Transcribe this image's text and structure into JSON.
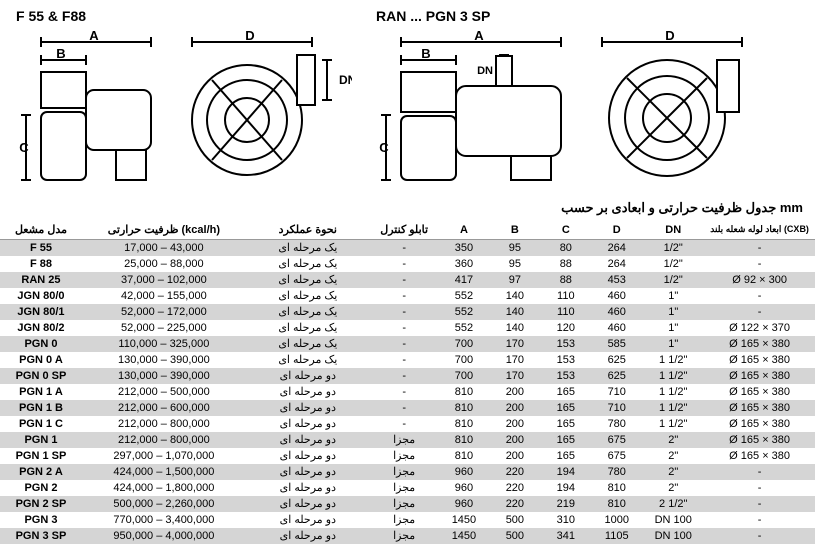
{
  "titles": {
    "left": "F 55 & F88",
    "right": "RAN ... PGN 3 SP",
    "table_caption": "جدول ظرفیت حرارتی و ابعادی بر حسب mm"
  },
  "headers": {
    "model": "مدل مشعل",
    "capacity": "ظرفیت حرارتی (kcal/h)",
    "operation": "نحوة عملكرد",
    "panel": "تابلو کنترل",
    "A": "A",
    "B": "B",
    "C": "C",
    "D": "D",
    "DN": "DN",
    "tube": "ابعاد لوله شعله بلند (CXB)"
  },
  "rows": [
    {
      "model": "F 55",
      "capacity": "17,000 – 43,000",
      "operation": "یک مرحله ای",
      "panel": "-",
      "A": "350",
      "B": "95",
      "C": "80",
      "D": "264",
      "DN": "1/2\"",
      "tube": "-"
    },
    {
      "model": "F 88",
      "capacity": "25,000 – 88,000",
      "operation": "یک مرحله ای",
      "panel": "-",
      "A": "360",
      "B": "95",
      "C": "88",
      "D": "264",
      "DN": "1/2\"",
      "tube": "-"
    },
    {
      "model": "RAN 25",
      "capacity": "37,000 – 102,000",
      "operation": "یک مرحله ای",
      "panel": "-",
      "A": "417",
      "B": "97",
      "C": "88",
      "D": "453",
      "DN": "1/2\"",
      "tube": "Ø 92 × 300"
    },
    {
      "model": "JGN 80/0",
      "capacity": "42,000 – 155,000",
      "operation": "یک مرحله ای",
      "panel": "-",
      "A": "552",
      "B": "140",
      "C": "110",
      "D": "460",
      "DN": "1\"",
      "tube": "-"
    },
    {
      "model": "JGN 80/1",
      "capacity": "52,000 – 172,000",
      "operation": "یک مرحله ای",
      "panel": "-",
      "A": "552",
      "B": "140",
      "C": "110",
      "D": "460",
      "DN": "1\"",
      "tube": "-"
    },
    {
      "model": "JGN 80/2",
      "capacity": "52,000 – 225,000",
      "operation": "یک مرحله ای",
      "panel": "-",
      "A": "552",
      "B": "140",
      "C": "120",
      "D": "460",
      "DN": "1\"",
      "tube": "Ø 122 × 370"
    },
    {
      "model": "PGN 0",
      "capacity": "110,000 – 325,000",
      "operation": "یک مرحله ای",
      "panel": "-",
      "A": "700",
      "B": "170",
      "C": "153",
      "D": "585",
      "DN": "1\"",
      "tube": "Ø 165 × 380"
    },
    {
      "model": "PGN 0 A",
      "capacity": "130,000 – 390,000",
      "operation": "یک مرحله ای",
      "panel": "-",
      "A": "700",
      "B": "170",
      "C": "153",
      "D": "625",
      "DN": "1 1/2\"",
      "tube": "Ø 165 × 380"
    },
    {
      "model": "PGN 0 SP",
      "capacity": "130,000 – 390,000",
      "operation": "دو مرحله ای",
      "panel": "-",
      "A": "700",
      "B": "170",
      "C": "153",
      "D": "625",
      "DN": "1 1/2\"",
      "tube": "Ø 165 × 380"
    },
    {
      "model": "PGN 1 A",
      "capacity": "212,000 – 500,000",
      "operation": "دو مرحله ای",
      "panel": "-",
      "A": "810",
      "B": "200",
      "C": "165",
      "D": "710",
      "DN": "1 1/2\"",
      "tube": "Ø 165 × 380"
    },
    {
      "model": "PGN 1 B",
      "capacity": "212,000 – 600,000",
      "operation": "دو مرحله ای",
      "panel": "-",
      "A": "810",
      "B": "200",
      "C": "165",
      "D": "710",
      "DN": "1 1/2\"",
      "tube": "Ø 165 × 380"
    },
    {
      "model": "PGN 1 C",
      "capacity": "212,000 – 800,000",
      "operation": "دو مرحله ای",
      "panel": "-",
      "A": "810",
      "B": "200",
      "C": "165",
      "D": "780",
      "DN": "1 1/2\"",
      "tube": "Ø 165 × 380"
    },
    {
      "model": "PGN 1",
      "capacity": "212,000 – 800,000",
      "operation": "دو مرحله ای",
      "panel": "مجزا",
      "A": "810",
      "B": "200",
      "C": "165",
      "D": "675",
      "DN": "2\"",
      "tube": "Ø 165 × 380"
    },
    {
      "model": "PGN 1 SP",
      "capacity": "297,000 – 1,070,000",
      "operation": "دو مرحله ای",
      "panel": "مجزا",
      "A": "810",
      "B": "200",
      "C": "165",
      "D": "675",
      "DN": "2\"",
      "tube": "Ø 165 × 380"
    },
    {
      "model": "PGN 2 A",
      "capacity": "424,000 – 1,500,000",
      "operation": "دو مرحله ای",
      "panel": "مجزا",
      "A": "960",
      "B": "220",
      "C": "194",
      "D": "780",
      "DN": "2\"",
      "tube": "-"
    },
    {
      "model": "PGN 2",
      "capacity": "424,000 – 1,800,000",
      "operation": "دو مرحله ای",
      "panel": "مجزا",
      "A": "960",
      "B": "220",
      "C": "194",
      "D": "810",
      "DN": "2\"",
      "tube": "-"
    },
    {
      "model": "PGN 2 SP",
      "capacity": "500,000 – 2,260,000",
      "operation": "دو مرحله ای",
      "panel": "مجزا",
      "A": "960",
      "B": "220",
      "C": "219",
      "D": "810",
      "DN": "2 1/2\"",
      "tube": "-"
    },
    {
      "model": "PGN 3",
      "capacity": "770,000 – 3,400,000",
      "operation": "دو مرحله ای",
      "panel": "مجزا",
      "A": "1450",
      "B": "500",
      "C": "310",
      "D": "1000",
      "DN": "DN 100",
      "tube": "-"
    },
    {
      "model": "PGN 3 SP",
      "capacity": "950,000 – 4,000,000",
      "operation": "دو مرحله ای",
      "panel": "مجزا",
      "A": "1450",
      "B": "500",
      "C": "341",
      "D": "1105",
      "DN": "DN 100",
      "tube": "-"
    }
  ],
  "diagram_style": {
    "stroke": "#000000",
    "fill": "#ffffff",
    "label_font": "12"
  }
}
